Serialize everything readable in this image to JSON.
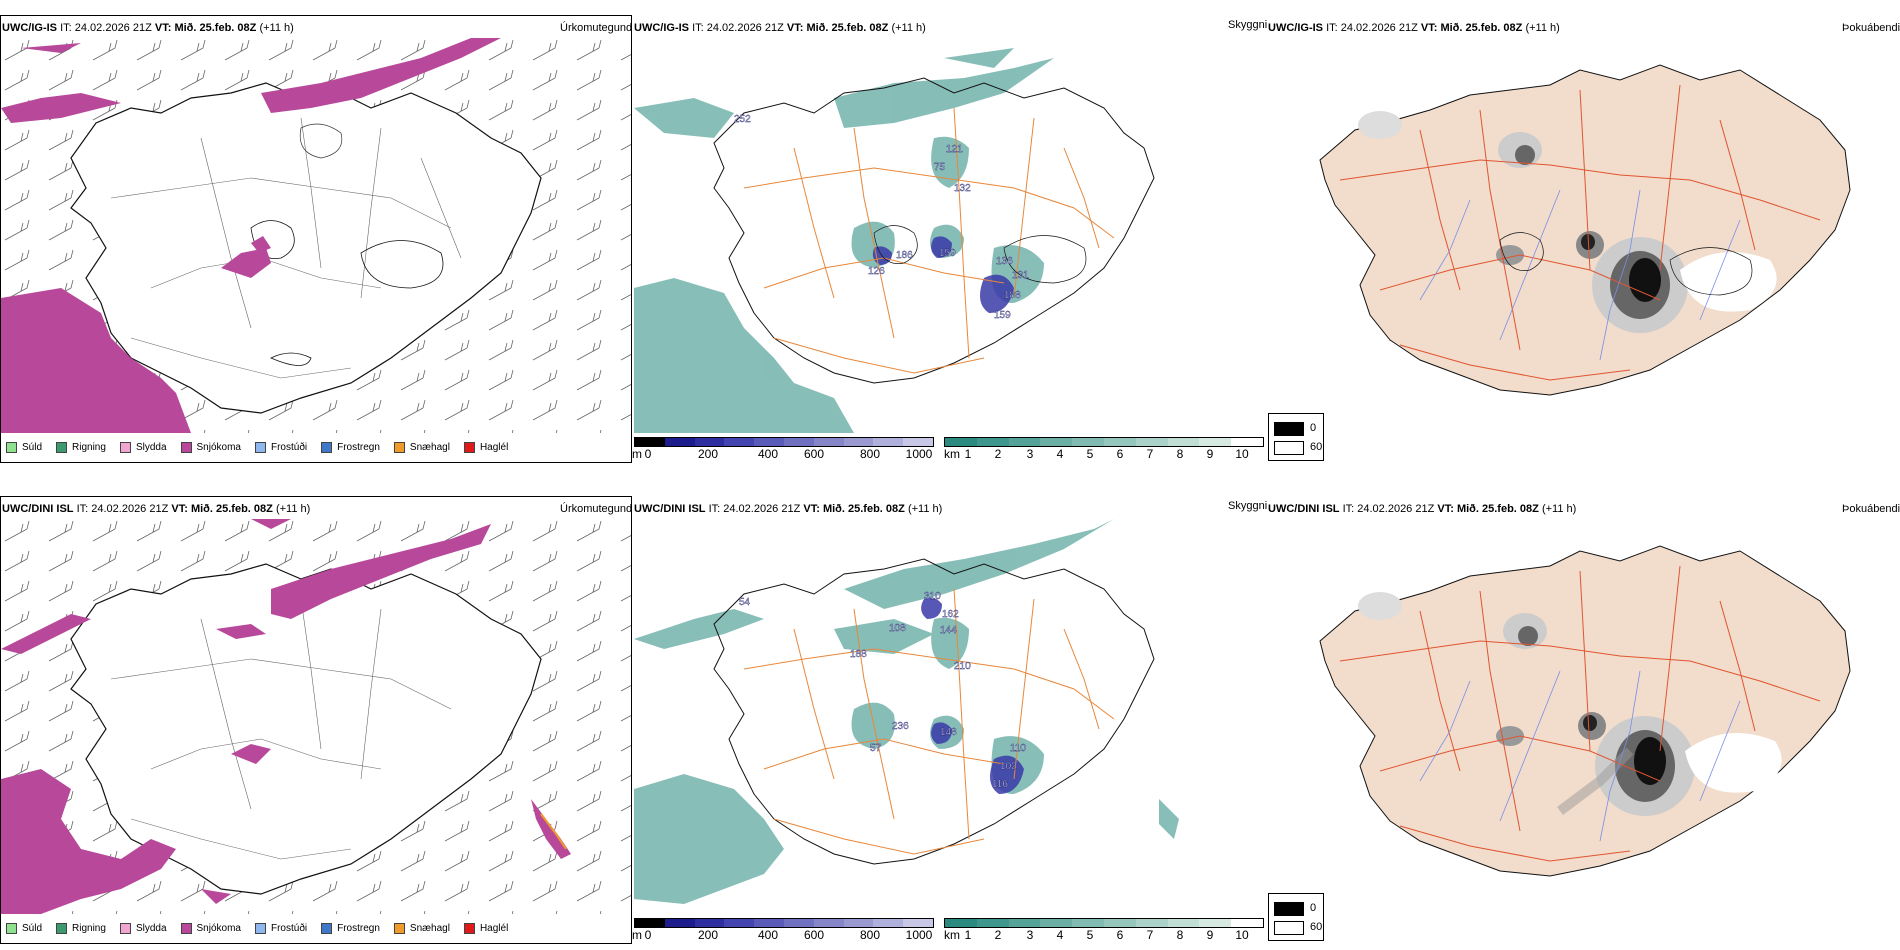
{
  "rows": [
    {
      "model": "UWC/IG-IS",
      "it_label": "IT:",
      "it_value": "24.02.2026 21Z",
      "vt_label": "VT:",
      "vt_value": "Mið. 25.feb. 08Z",
      "lead": "(+11 h)",
      "precip_labels": [
        "252",
        "121",
        "75",
        "132",
        "126",
        "186",
        "159",
        "136",
        "131",
        "188",
        "159"
      ],
      "precip_title": "Úrkomutegund",
      "cloud_title": "Skyggni",
      "fog_title": "Þokuábendi"
    },
    {
      "model": "UWC/DINI ISL",
      "it_label": "IT:",
      "it_value": "24.02.2026 21Z",
      "vt_label": "VT:",
      "vt_value": "Mið. 25.feb. 08Z",
      "lead": "(+11 h)",
      "precip_labels": [
        "54",
        "310",
        "108",
        "162",
        "144",
        "188",
        "210",
        "236",
        "57",
        "148",
        "110",
        "102",
        "116"
      ],
      "precip_title": "Úrkomutegund",
      "cloud_title": "Skyggni",
      "fog_title": "Þokuábendi"
    }
  ],
  "legend": {
    "items": [
      {
        "label": "Súld",
        "color": "#8fe08f"
      },
      {
        "label": "Rigning",
        "color": "#3c9a6e"
      },
      {
        "label": "Slydda",
        "color": "#f0a6d0"
      },
      {
        "label": "Snjókoma",
        "color": "#b8489a"
      },
      {
        "label": "Frostúði",
        "color": "#8fb8ee"
      },
      {
        "label": "Frostregn",
        "color": "#3f78c8"
      },
      {
        "label": "Snæhagl",
        "color": "#f09a2a"
      },
      {
        "label": "Haglél",
        "color": "#e01a1a"
      }
    ]
  },
  "cloud_base_bar": {
    "unit": "m",
    "ticks": [
      "0",
      "200",
      "400",
      "600",
      "800",
      "1000"
    ],
    "colors": [
      "#000000",
      "#1c1c8c",
      "#2e2ea0",
      "#4444b0",
      "#5a5ab8",
      "#7070c0",
      "#8585c8",
      "#9a9ad0",
      "#b0b0dc",
      "#c8c8e6"
    ]
  },
  "visibility_bar": {
    "unit": "km",
    "ticks": [
      "1",
      "2",
      "3",
      "4",
      "5",
      "6",
      "7",
      "8",
      "9",
      "10"
    ],
    "colors": [
      "#2a8a80",
      "#3f968c",
      "#55a298",
      "#6aaea4",
      "#80bab0",
      "#95c6bc",
      "#abd2c8",
      "#c0ded4",
      "#d6eae2",
      "#ffffff"
    ]
  },
  "fog_legend": {
    "items": [
      {
        "label": "0",
        "color": "#000000"
      },
      {
        "label": "60",
        "color": "#ffffff"
      }
    ]
  },
  "colors": {
    "snow": "#b8489a",
    "cloud_teal": "#5fa8a0",
    "low_cloud": "#3a3aa8",
    "roads": "#e8873a",
    "land_tan": "#f2dccb",
    "land_roads_red": "#e05530",
    "rivers": "#7a8ee8"
  }
}
